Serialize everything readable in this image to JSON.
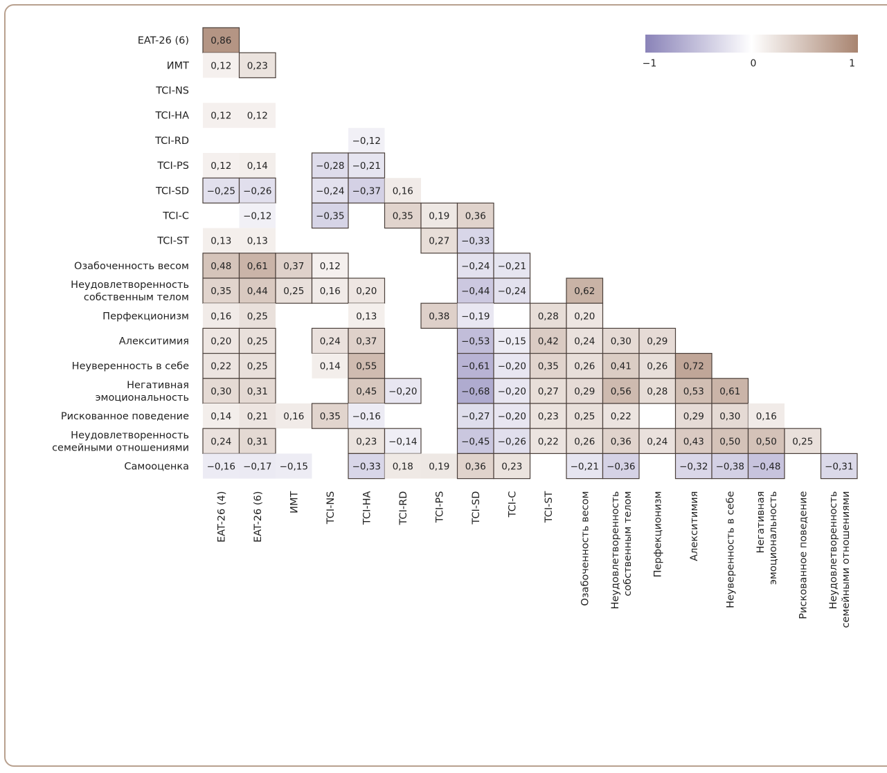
{
  "colors": {
    "negative": "#8a83b8",
    "zero": "#ffffff",
    "positive": "#a88470",
    "border": "#4a3f3a",
    "frame": "#b8a08e"
  },
  "chart_data": {
    "type": "heatmap",
    "title": "",
    "rows": [
      [
        "EAT-26 (6)"
      ],
      [
        "ИМТ"
      ],
      [
        "TCI-NS"
      ],
      [
        "TCI-HA"
      ],
      [
        "TCI-RD"
      ],
      [
        "TCI-PS"
      ],
      [
        "TCI-SD"
      ],
      [
        "TCI-C"
      ],
      [
        "TCI-ST"
      ],
      [
        "Озабоченность весом"
      ],
      [
        "Неудовлетворенность",
        "собственным телом"
      ],
      [
        "Перфекционизм"
      ],
      [
        "Алекситимия"
      ],
      [
        "Неуверенность в себе"
      ],
      [
        "Негативная",
        "эмоциональность"
      ],
      [
        "Рискованное поведение"
      ],
      [
        "Неудовлетворенность",
        "семейными отношениями"
      ],
      [
        "Самооценка"
      ]
    ],
    "columns": [
      [
        "EAT-26 (4)"
      ],
      [
        "EAT-26 (6)"
      ],
      [
        "ИМТ"
      ],
      [
        "TCI-NS"
      ],
      [
        "TCI-HA"
      ],
      [
        "TCI-RD"
      ],
      [
        "TCI-PS"
      ],
      [
        "TCI-SD"
      ],
      [
        "TCI-C"
      ],
      [
        "TCI-ST"
      ],
      [
        "Озабоченность весом"
      ],
      [
        "Неудовлетворенность",
        "собственным телом"
      ],
      [
        "Перфекционизм"
      ],
      [
        "Алекситимия"
      ],
      [
        "Неуверенность в себе"
      ],
      [
        "Негативная",
        "эмоциональность"
      ],
      [
        "Рискованное поведение"
      ],
      [
        "Неудовлетворенность",
        "семейными отношениями"
      ]
    ],
    "values": [
      [
        0.86
      ],
      [
        0.12,
        0.23
      ],
      [
        null,
        null,
        null
      ],
      [
        0.12,
        0.12,
        null,
        null
      ],
      [
        null,
        null,
        null,
        null,
        -0.12
      ],
      [
        0.12,
        0.14,
        null,
        -0.28,
        -0.21,
        null
      ],
      [
        -0.25,
        -0.26,
        null,
        -0.24,
        -0.37,
        0.16,
        null
      ],
      [
        null,
        -0.12,
        null,
        -0.35,
        null,
        0.35,
        0.19,
        0.36
      ],
      [
        0.13,
        0.13,
        null,
        null,
        null,
        null,
        0.27,
        -0.33,
        null
      ],
      [
        0.48,
        0.61,
        0.37,
        0.12,
        null,
        null,
        null,
        -0.24,
        -0.21,
        null
      ],
      [
        0.35,
        0.44,
        0.25,
        0.16,
        0.2,
        null,
        null,
        -0.44,
        -0.24,
        null,
        0.62
      ],
      [
        0.16,
        0.25,
        null,
        null,
        0.13,
        null,
        0.38,
        -0.19,
        null,
        0.28,
        0.2,
        null
      ],
      [
        0.2,
        0.25,
        null,
        0.24,
        0.37,
        null,
        null,
        -0.53,
        -0.15,
        0.42,
        0.24,
        0.3,
        0.29
      ],
      [
        0.22,
        0.25,
        null,
        0.14,
        0.55,
        null,
        null,
        -0.61,
        -0.2,
        0.35,
        0.26,
        0.41,
        0.26,
        0.72
      ],
      [
        0.3,
        0.31,
        null,
        null,
        0.45,
        -0.2,
        null,
        -0.68,
        -0.2,
        0.27,
        0.29,
        0.56,
        0.28,
        0.53,
        0.61
      ],
      [
        0.14,
        0.21,
        0.16,
        0.35,
        -0.16,
        null,
        null,
        -0.27,
        -0.2,
        0.23,
        0.25,
        0.22,
        null,
        0.29,
        0.3,
        0.16
      ],
      [
        0.24,
        0.31,
        null,
        null,
        0.23,
        -0.14,
        null,
        -0.45,
        -0.26,
        0.22,
        0.26,
        0.36,
        0.24,
        0.43,
        0.5,
        0.5,
        0.25
      ],
      [
        -0.16,
        -0.17,
        -0.15,
        null,
        -0.33,
        0.18,
        0.19,
        0.36,
        0.23,
        null,
        -0.21,
        -0.36,
        null,
        -0.32,
        -0.38,
        -0.48,
        null,
        -0.31
      ]
    ],
    "bordered": [
      [
        true
      ],
      [
        false,
        true
      ],
      [
        false,
        false,
        false
      ],
      [
        false,
        false,
        false,
        false
      ],
      [
        false,
        false,
        false,
        false,
        false
      ],
      [
        false,
        false,
        false,
        true,
        true,
        false
      ],
      [
        true,
        true,
        false,
        true,
        true,
        false,
        false
      ],
      [
        false,
        false,
        false,
        true,
        false,
        true,
        true,
        true
      ],
      [
        false,
        false,
        false,
        false,
        false,
        false,
        true,
        true,
        false
      ],
      [
        true,
        true,
        true,
        true,
        false,
        false,
        false,
        true,
        true,
        false
      ],
      [
        true,
        true,
        true,
        true,
        true,
        false,
        false,
        true,
        true,
        false,
        true
      ],
      [
        false,
        false,
        false,
        false,
        false,
        false,
        true,
        false,
        false,
        true,
        true,
        false
      ],
      [
        true,
        true,
        false,
        true,
        true,
        false,
        false,
        true,
        true,
        true,
        true,
        true,
        true
      ],
      [
        true,
        true,
        false,
        false,
        true,
        false,
        false,
        true,
        true,
        true,
        true,
        true,
        true,
        true
      ],
      [
        true,
        true,
        false,
        false,
        true,
        true,
        false,
        true,
        true,
        true,
        true,
        true,
        true,
        true,
        true
      ],
      [
        false,
        false,
        false,
        true,
        false,
        false,
        false,
        true,
        true,
        true,
        true,
        true,
        false,
        true,
        true,
        false
      ],
      [
        true,
        true,
        false,
        false,
        true,
        true,
        false,
        true,
        true,
        true,
        true,
        true,
        true,
        true,
        true,
        true,
        true
      ],
      [
        false,
        false,
        false,
        false,
        true,
        false,
        false,
        true,
        true,
        false,
        true,
        true,
        false,
        true,
        true,
        true,
        false,
        true
      ]
    ],
    "color_scale": {
      "min": -1,
      "max": 1,
      "tick_labels": [
        "−1",
        "0",
        "1"
      ]
    }
  }
}
